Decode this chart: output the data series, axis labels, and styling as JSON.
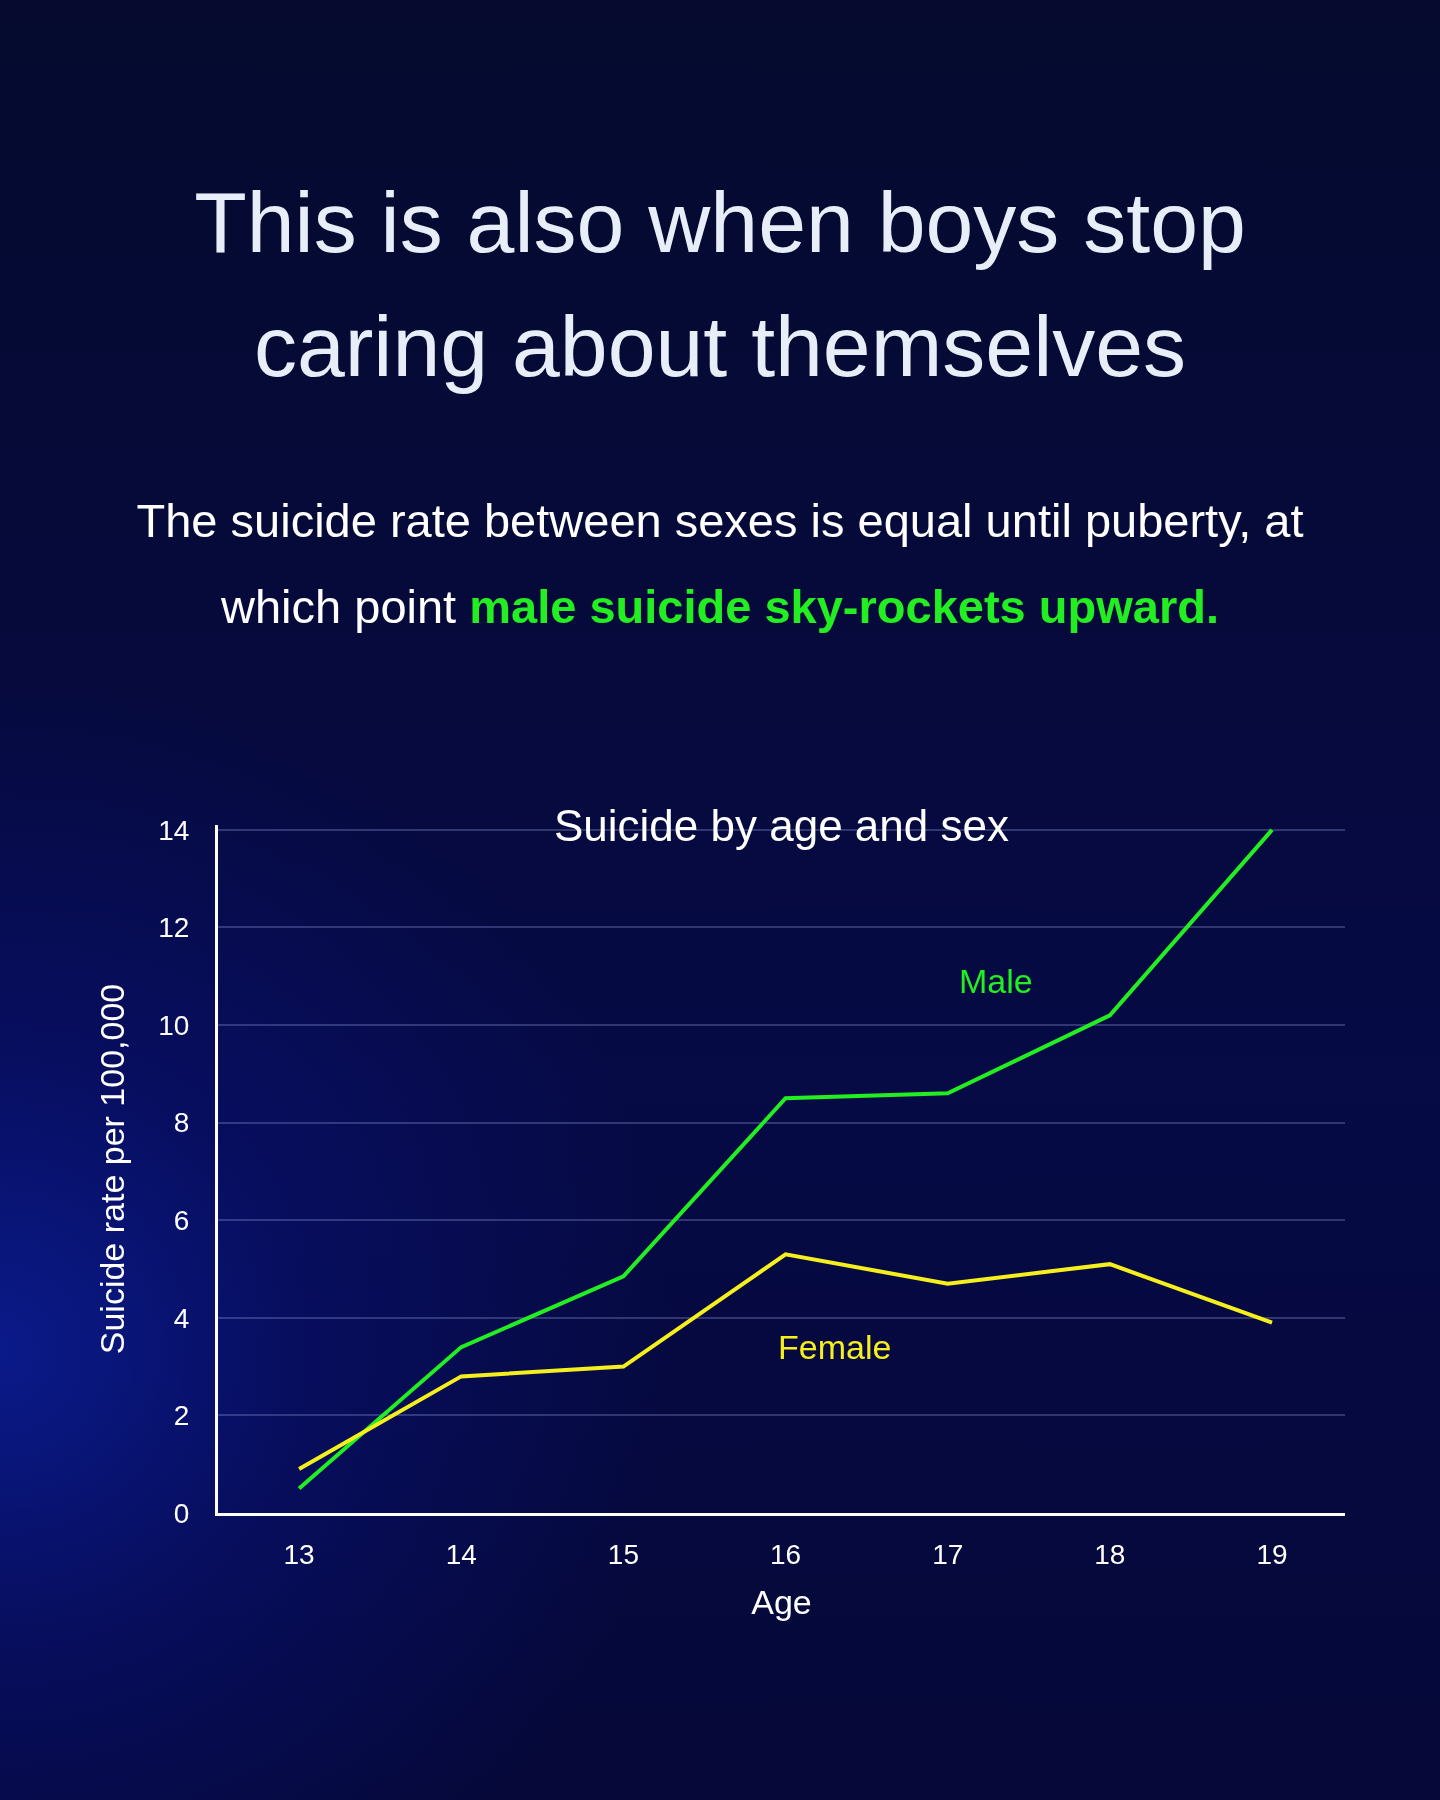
{
  "chart_data": {
    "type": "line",
    "title": "This is also when boys stop caring about themselves",
    "subtitle": "The suicide rate between sexes is equal until puberty, at which point",
    "annotations": [
      "male suicide sky-rockets upward.",
      "Suicide by age and sex"
    ],
    "x": [
      13,
      14,
      15,
      16,
      17,
      18,
      19
    ],
    "series": [
      {
        "name": "Male",
        "color": "#22ee22",
        "values": [
          0.5,
          3.4,
          4.85,
          8.5,
          8.6,
          10.2,
          14
        ]
      },
      {
        "name": "Female",
        "color": "#f5ef1e",
        "values": [
          0.9,
          2.8,
          3.0,
          5.3,
          4.7,
          5.1,
          3.9
        ]
      }
    ],
    "xlim": [
      12.5,
      19.45
    ],
    "xticks": [
      13,
      14,
      15,
      16,
      17,
      18,
      19
    ],
    "ylim": [
      0,
      14.1
    ],
    "yticks": [
      0,
      2,
      4,
      6,
      8,
      10,
      12,
      14
    ],
    "xlabel": "Age",
    "ylabel": "Suicide rate per 100,000",
    "grid": "y",
    "legend": false,
    "marker": "none",
    "line_style": "solid"
  }
}
